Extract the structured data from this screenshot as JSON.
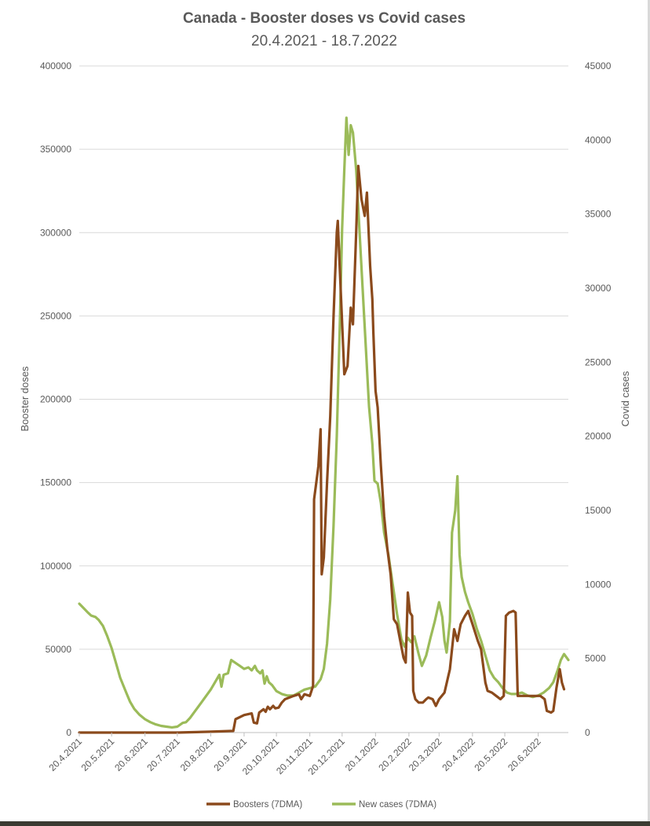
{
  "chart_data": {
    "type": "line",
    "title": "Canada - Booster doses vs Covid cases",
    "subtitle": "20.4.2021 - 18.7.2022",
    "ylabel_left": "Booster doses",
    "ylabel_right": "Covid cases",
    "ylim_left": [
      0,
      400000
    ],
    "ylim_right": [
      0,
      45000
    ],
    "yticks_left": [
      "0",
      "50000",
      "100000",
      "150000",
      "200000",
      "250000",
      "300000",
      "350000",
      "400000"
    ],
    "yticks_right": [
      "0",
      "5000",
      "10000",
      "15000",
      "20000",
      "25000",
      "30000",
      "35000",
      "40000",
      "45000"
    ],
    "xticks": [
      "20.4.2021",
      "20.5.2021",
      "20.6.2021",
      "20.7.2021",
      "20.8.2021",
      "20.9.2021",
      "20.10.2021",
      "20.11.2021",
      "20.12.2021",
      "20.1.2022",
      "20.2.2022",
      "20.3.2022",
      "20.4.2022",
      "20.5.2022",
      "20.6.2022"
    ],
    "x_start": "2021-04-20",
    "x_end": "2022-07-18",
    "grid": true,
    "legend_position": "bottom",
    "series": [
      {
        "name": "Boosters (7DMA)",
        "axis": "left",
        "color": "#8b4a1c",
        "points": [
          [
            "2021-04-20",
            0
          ],
          [
            "2021-07-20",
            0
          ],
          [
            "2021-08-20",
            500
          ],
          [
            "2021-09-10",
            1000
          ],
          [
            "2021-09-12",
            8000
          ],
          [
            "2021-09-20",
            10500
          ],
          [
            "2021-09-27",
            11500
          ],
          [
            "2021-09-29",
            6000
          ],
          [
            "2021-10-02",
            5500
          ],
          [
            "2021-10-04",
            12000
          ],
          [
            "2021-10-08",
            14000
          ],
          [
            "2021-10-10",
            12500
          ],
          [
            "2021-10-12",
            15500
          ],
          [
            "2021-10-14",
            14000
          ],
          [
            "2021-10-17",
            16000
          ],
          [
            "2021-10-19",
            14500
          ],
          [
            "2021-10-22",
            15000
          ],
          [
            "2021-10-25",
            18000
          ],
          [
            "2021-10-28",
            20000
          ],
          [
            "2021-11-05",
            22000
          ],
          [
            "2021-11-10",
            23000
          ],
          [
            "2021-11-12",
            20000
          ],
          [
            "2021-11-15",
            23000
          ],
          [
            "2021-11-20",
            22000
          ],
          [
            "2021-11-23",
            28000
          ],
          [
            "2021-11-24",
            140000
          ],
          [
            "2021-11-26",
            150000
          ],
          [
            "2021-11-28",
            160000
          ],
          [
            "2021-11-30",
            182000
          ],
          [
            "2021-12-01",
            95000
          ],
          [
            "2021-12-03",
            105000
          ],
          [
            "2021-12-06",
            150000
          ],
          [
            "2021-12-09",
            190000
          ],
          [
            "2021-12-12",
            250000
          ],
          [
            "2021-12-15",
            300000
          ],
          [
            "2021-12-16",
            307000
          ],
          [
            "2021-12-19",
            260000
          ],
          [
            "2021-12-22",
            215000
          ],
          [
            "2021-12-25",
            220000
          ],
          [
            "2021-12-28",
            255000
          ],
          [
            "2021-12-30",
            245000
          ],
          [
            "2022-01-02",
            300000
          ],
          [
            "2022-01-04",
            340000
          ],
          [
            "2022-01-07",
            320000
          ],
          [
            "2022-01-10",
            310000
          ],
          [
            "2022-01-12",
            324000
          ],
          [
            "2022-01-15",
            280000
          ],
          [
            "2022-01-17",
            260000
          ],
          [
            "2022-01-18",
            240000
          ],
          [
            "2022-01-20",
            205000
          ],
          [
            "2022-01-22",
            195000
          ],
          [
            "2022-01-25",
            160000
          ],
          [
            "2022-01-28",
            130000
          ],
          [
            "2022-01-31",
            110000
          ],
          [
            "2022-02-03",
            95000
          ],
          [
            "2022-02-06",
            68000
          ],
          [
            "2022-02-09",
            65000
          ],
          [
            "2022-02-12",
            55000
          ],
          [
            "2022-02-15",
            45000
          ],
          [
            "2022-02-17",
            42000
          ],
          [
            "2022-02-19",
            84000
          ],
          [
            "2022-02-21",
            72000
          ],
          [
            "2022-02-23",
            70000
          ],
          [
            "2022-02-24",
            25000
          ],
          [
            "2022-02-26",
            20000
          ],
          [
            "2022-03-01",
            18000
          ],
          [
            "2022-03-05",
            18000
          ],
          [
            "2022-03-08",
            20000
          ],
          [
            "2022-03-10",
            21000
          ],
          [
            "2022-03-14",
            20000
          ],
          [
            "2022-03-17",
            16000
          ],
          [
            "2022-03-20",
            20000
          ],
          [
            "2022-03-25",
            24000
          ],
          [
            "2022-03-30",
            38000
          ],
          [
            "2022-04-03",
            62000
          ],
          [
            "2022-04-06",
            55000
          ],
          [
            "2022-04-09",
            65000
          ],
          [
            "2022-04-13",
            70000
          ],
          [
            "2022-04-16",
            73000
          ],
          [
            "2022-04-20",
            65000
          ],
          [
            "2022-04-25",
            55000
          ],
          [
            "2022-04-28",
            50000
          ],
          [
            "2022-05-02",
            30000
          ],
          [
            "2022-05-04",
            25000
          ],
          [
            "2022-05-08",
            24000
          ],
          [
            "2022-05-12",
            22000
          ],
          [
            "2022-05-16",
            20000
          ],
          [
            "2022-05-19",
            22000
          ],
          [
            "2022-05-21",
            70000
          ],
          [
            "2022-05-24",
            72000
          ],
          [
            "2022-05-28",
            73000
          ],
          [
            "2022-05-30",
            72000
          ],
          [
            "2022-06-01",
            22000
          ],
          [
            "2022-06-08",
            22000
          ],
          [
            "2022-06-15",
            22000
          ],
          [
            "2022-06-22",
            22000
          ],
          [
            "2022-06-26",
            20000
          ],
          [
            "2022-06-28",
            13000
          ],
          [
            "2022-07-02",
            12000
          ],
          [
            "2022-07-04",
            13000
          ],
          [
            "2022-07-07",
            27000
          ],
          [
            "2022-07-10",
            38000
          ],
          [
            "2022-07-12",
            30000
          ],
          [
            "2022-07-14",
            26000
          ]
        ]
      },
      {
        "name": "New cases (7DMA)",
        "axis": "right",
        "color": "#9bbb59",
        "points": [
          [
            "2021-04-20",
            8700
          ],
          [
            "2021-04-24",
            8400
          ],
          [
            "2021-04-28",
            8100
          ],
          [
            "2021-05-01",
            7900
          ],
          [
            "2021-05-05",
            7800
          ],
          [
            "2021-05-08",
            7600
          ],
          [
            "2021-05-12",
            7200
          ],
          [
            "2021-05-16",
            6500
          ],
          [
            "2021-05-20",
            5700
          ],
          [
            "2021-05-24",
            4700
          ],
          [
            "2021-05-28",
            3700
          ],
          [
            "2021-06-02",
            2800
          ],
          [
            "2021-06-06",
            2100
          ],
          [
            "2021-06-10",
            1600
          ],
          [
            "2021-06-15",
            1200
          ],
          [
            "2021-06-20",
            900
          ],
          [
            "2021-06-25",
            700
          ],
          [
            "2021-06-30",
            550
          ],
          [
            "2021-07-05",
            450
          ],
          [
            "2021-07-10",
            400
          ],
          [
            "2021-07-15",
            350
          ],
          [
            "2021-07-20",
            400
          ],
          [
            "2021-07-25",
            650
          ],
          [
            "2021-07-28",
            700
          ],
          [
            "2021-08-01",
            1000
          ],
          [
            "2021-08-05",
            1400
          ],
          [
            "2021-08-10",
            1900
          ],
          [
            "2021-08-15",
            2400
          ],
          [
            "2021-08-20",
            2900
          ],
          [
            "2021-08-24",
            3400
          ],
          [
            "2021-08-28",
            3900
          ],
          [
            "2021-08-30",
            3100
          ],
          [
            "2021-09-01",
            3900
          ],
          [
            "2021-09-05",
            4000
          ],
          [
            "2021-09-08",
            4900
          ],
          [
            "2021-09-12",
            4700
          ],
          [
            "2021-09-16",
            4500
          ],
          [
            "2021-09-20",
            4300
          ],
          [
            "2021-09-24",
            4400
          ],
          [
            "2021-09-27",
            4200
          ],
          [
            "2021-09-30",
            4500
          ],
          [
            "2021-10-02",
            4200
          ],
          [
            "2021-10-05",
            4000
          ],
          [
            "2021-10-07",
            4200
          ],
          [
            "2021-10-09",
            3300
          ],
          [
            "2021-10-11",
            3800
          ],
          [
            "2021-10-13",
            3400
          ],
          [
            "2021-10-16",
            3200
          ],
          [
            "2021-10-20",
            2800
          ],
          [
            "2021-10-25",
            2600
          ],
          [
            "2021-10-30",
            2500
          ],
          [
            "2021-11-05",
            2500
          ],
          [
            "2021-11-10",
            2700
          ],
          [
            "2021-11-15",
            2900
          ],
          [
            "2021-11-20",
            3000
          ],
          [
            "2021-11-25",
            3100
          ],
          [
            "2021-11-30",
            3600
          ],
          [
            "2021-12-03",
            4300
          ],
          [
            "2021-12-06",
            6000
          ],
          [
            "2021-12-09",
            9000
          ],
          [
            "2021-12-12",
            14000
          ],
          [
            "2021-12-15",
            20000
          ],
          [
            "2021-12-18",
            28000
          ],
          [
            "2021-12-20",
            34000
          ],
          [
            "2021-12-22",
            38000
          ],
          [
            "2021-12-24",
            41500
          ],
          [
            "2021-12-26",
            39000
          ],
          [
            "2021-12-28",
            41000
          ],
          [
            "2021-12-30",
            40500
          ],
          [
            "2022-01-02",
            38000
          ],
          [
            "2022-01-05",
            34000
          ],
          [
            "2022-01-08",
            30000
          ],
          [
            "2022-01-11",
            26000
          ],
          [
            "2022-01-14",
            22000
          ],
          [
            "2022-01-17",
            19500
          ],
          [
            "2022-01-19",
            17000
          ],
          [
            "2022-01-22",
            16800
          ],
          [
            "2022-01-25",
            15500
          ],
          [
            "2022-01-28",
            13500
          ],
          [
            "2022-02-01",
            12000
          ],
          [
            "2022-02-05",
            10000
          ],
          [
            "2022-02-09",
            8000
          ],
          [
            "2022-02-13",
            6300
          ],
          [
            "2022-02-16",
            5800
          ],
          [
            "2022-02-19",
            6400
          ],
          [
            "2022-02-22",
            6100
          ],
          [
            "2022-02-25",
            6500
          ],
          [
            "2022-03-01",
            5300
          ],
          [
            "2022-03-04",
            4500
          ],
          [
            "2022-03-08",
            5200
          ],
          [
            "2022-03-12",
            6400
          ],
          [
            "2022-03-16",
            7500
          ],
          [
            "2022-03-20",
            8800
          ],
          [
            "2022-03-23",
            7800
          ],
          [
            "2022-03-25",
            6200
          ],
          [
            "2022-03-27",
            5400
          ],
          [
            "2022-03-30",
            7500
          ],
          [
            "2022-04-01",
            13500
          ],
          [
            "2022-04-04",
            15000
          ],
          [
            "2022-04-06",
            17300
          ],
          [
            "2022-04-08",
            12000
          ],
          [
            "2022-04-10",
            10500
          ],
          [
            "2022-04-13",
            9500
          ],
          [
            "2022-04-16",
            8800
          ],
          [
            "2022-04-20",
            8000
          ],
          [
            "2022-04-24",
            7000
          ],
          [
            "2022-04-28",
            6200
          ],
          [
            "2022-05-02",
            5200
          ],
          [
            "2022-05-06",
            4200
          ],
          [
            "2022-05-10",
            3700
          ],
          [
            "2022-05-14",
            3400
          ],
          [
            "2022-05-18",
            3000
          ],
          [
            "2022-05-22",
            2700
          ],
          [
            "2022-05-26",
            2600
          ],
          [
            "2022-05-30",
            2600
          ],
          [
            "2022-06-05",
            2700
          ],
          [
            "2022-06-10",
            2500
          ],
          [
            "2022-06-15",
            2400
          ],
          [
            "2022-06-20",
            2500
          ],
          [
            "2022-06-25",
            2700
          ],
          [
            "2022-06-30",
            3000
          ],
          [
            "2022-07-04",
            3400
          ],
          [
            "2022-07-08",
            4200
          ],
          [
            "2022-07-11",
            4900
          ],
          [
            "2022-07-14",
            5300
          ],
          [
            "2022-07-16",
            5100
          ],
          [
            "2022-07-18",
            4900
          ]
        ]
      }
    ]
  }
}
